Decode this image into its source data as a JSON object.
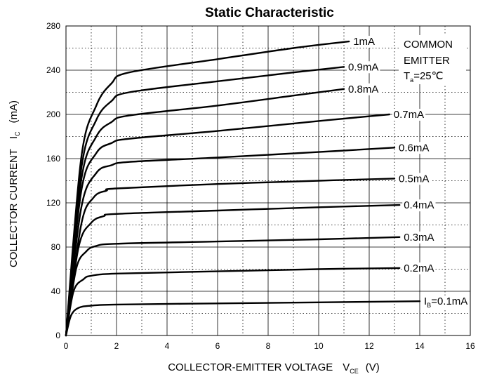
{
  "chart_data": {
    "type": "line",
    "title": "Static Characteristic",
    "xlabel": {
      "main": "COLLECTOR-EMITTER VOLTAGE",
      "symbol": "V",
      "subscript": "CE",
      "unit": "(V)"
    },
    "ylabel": {
      "main": "COLLECTOR CURRENT",
      "symbol": "I",
      "subscript": "C",
      "unit": "(mA)"
    },
    "xlim": [
      0,
      16
    ],
    "ylim": [
      0,
      280
    ],
    "xticks": [
      0,
      2,
      4,
      6,
      8,
      10,
      12,
      14,
      16
    ],
    "yticks": [
      0,
      40,
      80,
      120,
      160,
      200,
      240,
      280
    ],
    "grid": true,
    "annotation": {
      "line1": "COMMON",
      "line2": "EMITTER",
      "temp_symbol": "T",
      "temp_sub": "a",
      "temp_value": "=25℃"
    },
    "series": [
      {
        "name": "I_B=0.1mA",
        "label": "=0.1mA",
        "label_prefix": "I",
        "label_sub": "B",
        "x_end": 14,
        "points": [
          [
            0,
            0
          ],
          [
            0.2,
            18
          ],
          [
            0.5,
            25
          ],
          [
            1,
            27
          ],
          [
            2,
            28
          ],
          [
            6,
            29
          ],
          [
            10,
            30
          ],
          [
            14,
            31
          ]
        ]
      },
      {
        "name": "0.2mA",
        "label": "0.2mA",
        "x_end": 13.2,
        "points": [
          [
            0,
            0
          ],
          [
            0.3,
            40
          ],
          [
            0.7,
            51
          ],
          [
            1,
            54
          ],
          [
            2,
            56
          ],
          [
            6,
            58
          ],
          [
            10,
            60
          ],
          [
            13.2,
            61
          ]
        ]
      },
      {
        "name": "0.3mA",
        "label": "0.3mA",
        "x_end": 13.2,
        "points": [
          [
            0,
            0
          ],
          [
            0.4,
            60
          ],
          [
            0.8,
            76
          ],
          [
            1.2,
            81
          ],
          [
            2,
            83
          ],
          [
            6,
            85
          ],
          [
            10,
            87
          ],
          [
            13.2,
            89
          ]
        ]
      },
      {
        "name": "0.4mA",
        "label": "0.4mA",
        "x_end": 13.2,
        "points": [
          [
            0,
            0
          ],
          [
            0.5,
            80
          ],
          [
            1,
            102
          ],
          [
            1.5,
            108
          ],
          [
            2,
            110
          ],
          [
            6,
            113
          ],
          [
            10,
            116
          ],
          [
            13.2,
            118
          ]
        ]
      },
      {
        "name": "0.5mA",
        "label": "0.5mA",
        "x_end": 13,
        "points": [
          [
            0,
            0
          ],
          [
            0.6,
            100
          ],
          [
            1.1,
            125
          ],
          [
            1.6,
            131
          ],
          [
            2,
            133
          ],
          [
            6,
            137
          ],
          [
            10,
            140
          ],
          [
            13,
            142
          ]
        ]
      },
      {
        "name": "0.6mA",
        "label": "0.6mA",
        "x_end": 13,
        "points": [
          [
            0,
            0
          ],
          [
            0.6,
            115
          ],
          [
            1.2,
            147
          ],
          [
            1.8,
            154
          ],
          [
            2.5,
            157
          ],
          [
            6,
            161
          ],
          [
            10,
            166
          ],
          [
            13,
            170
          ]
        ]
      },
      {
        "name": "0.7mA",
        "label": "0.7mA",
        "x_end": 12.8,
        "points": [
          [
            0,
            0
          ],
          [
            0.6,
            130
          ],
          [
            1.2,
            165
          ],
          [
            1.8,
            174
          ],
          [
            2.5,
            178
          ],
          [
            6,
            185
          ],
          [
            10,
            194
          ],
          [
            12.8,
            200
          ]
        ]
      },
      {
        "name": "0.8mA",
        "label": "0.8mA",
        "x_end": 11,
        "points": [
          [
            0,
            0
          ],
          [
            0.6,
            140
          ],
          [
            1.2,
            180
          ],
          [
            1.8,
            193
          ],
          [
            2.5,
            199
          ],
          [
            6,
            208
          ],
          [
            9,
            217
          ],
          [
            11,
            223
          ]
        ]
      },
      {
        "name": "0.9mA",
        "label": "0.9mA",
        "x_end": 11,
        "points": [
          [
            0,
            0
          ],
          [
            0.6,
            150
          ],
          [
            1.2,
            195
          ],
          [
            1.8,
            212
          ],
          [
            2.5,
            220
          ],
          [
            6,
            230
          ],
          [
            9,
            238
          ],
          [
            11,
            243
          ]
        ]
      },
      {
        "name": "1mA",
        "label": "1mA",
        "x_end": 11.2,
        "points": [
          [
            0,
            0
          ],
          [
            0.6,
            160
          ],
          [
            1.2,
            208
          ],
          [
            1.8,
            228
          ],
          [
            2.5,
            238
          ],
          [
            6,
            250
          ],
          [
            9,
            260
          ],
          [
            11.2,
            266
          ]
        ]
      }
    ]
  }
}
